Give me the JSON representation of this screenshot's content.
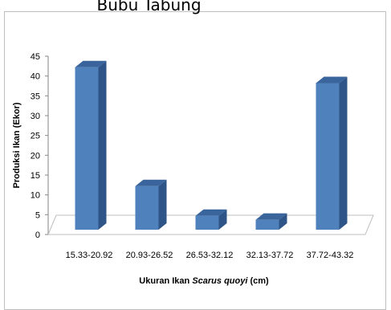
{
  "chart_data": {
    "type": "bar",
    "title": "Bubu Tabung",
    "xlabel_parts": [
      "Ukuran Ikan ",
      "Scarus quoyi",
      " (cm)"
    ],
    "ylabel": "Produksi Ikan (Ekor)",
    "categories": [
      "15.33-20.92",
      "20.93-26.52",
      "26.53-32.12",
      "32.13-37.72",
      "37.72-43.32"
    ],
    "values": [
      41,
      11,
      3.5,
      2.5,
      37
    ],
    "ylim": [
      0,
      45
    ],
    "yticks": [
      "0",
      "5",
      "10",
      "15",
      "20",
      "25",
      "30",
      "35",
      "40",
      "45"
    ],
    "ytick_values": [
      0,
      5,
      10,
      15,
      20,
      25,
      30,
      35,
      40,
      45
    ],
    "grid": false,
    "style": "3d-bar",
    "colors": {
      "bar_front": "#4f81bd",
      "bar_side": "#2f5487",
      "bar_top": "#3a659c",
      "floor": "#bfbfbf",
      "axis": "#868686"
    }
  }
}
